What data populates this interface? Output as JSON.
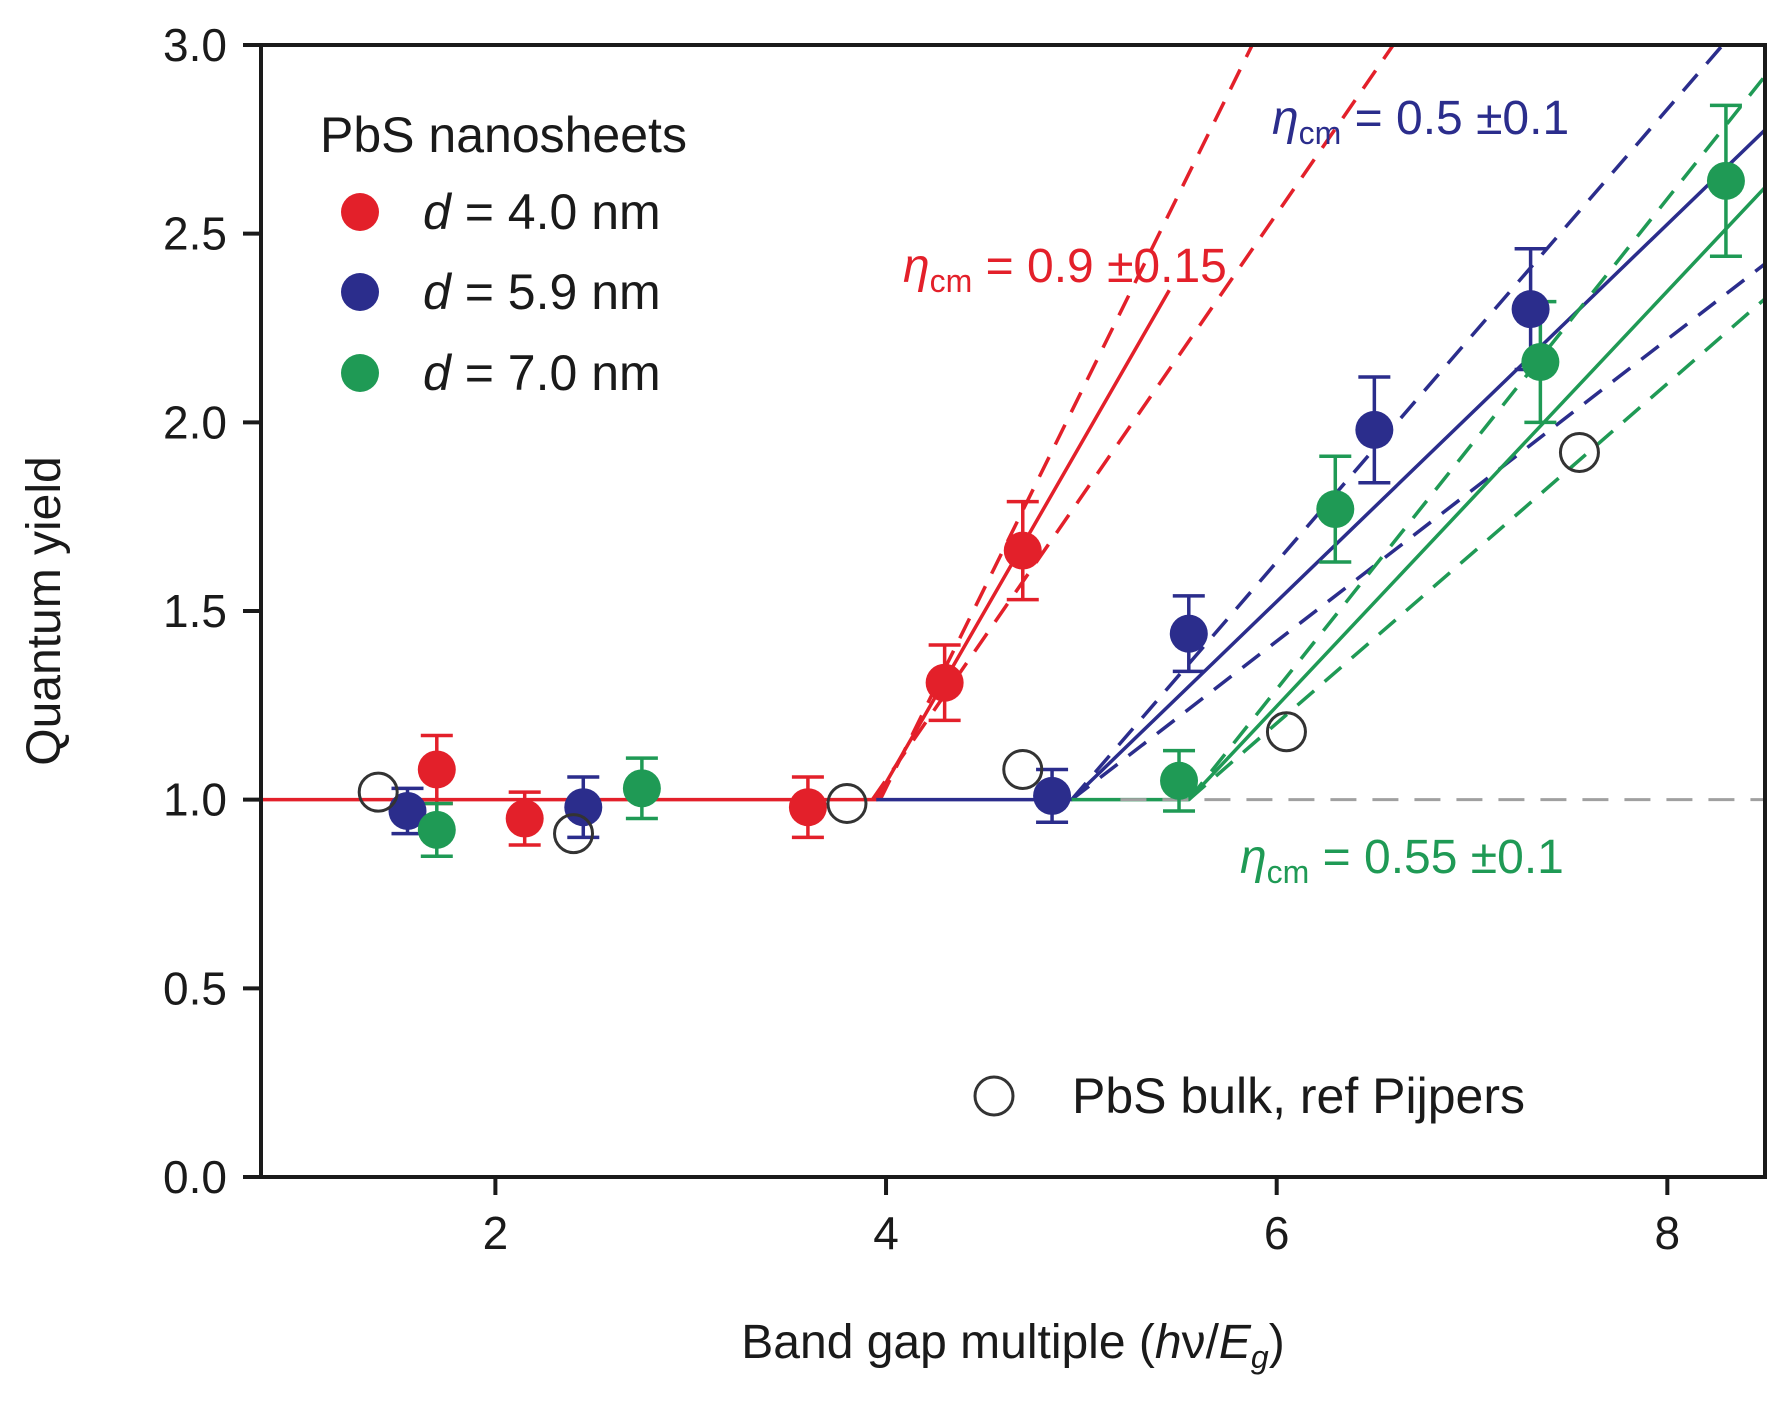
{
  "chart_data": {
    "type": "scatter",
    "title": "",
    "xlabel": "Band gap multiple (hν/Eg)",
    "xlabel_parts": {
      "prefix": "Band gap multiple (",
      "h": "h",
      "nu": "ν",
      "slash": "/",
      "E": "E",
      "g": "g",
      "suffix": ")"
    },
    "ylabel": "Quantum yield",
    "xlim": [
      0.8,
      8.5
    ],
    "ylim": [
      0.0,
      3.0
    ],
    "xticks": [
      2,
      4,
      6,
      8
    ],
    "yticks": [
      0.0,
      0.5,
      1.0,
      1.5,
      2.0,
      2.5,
      3.0
    ],
    "xtick_labels": [
      "2",
      "4",
      "6",
      "8"
    ],
    "ytick_labels": [
      "0.0",
      "0.5",
      "1.0",
      "1.5",
      "2.0",
      "2.5",
      "3.0"
    ],
    "legend": {
      "title": "PbS nanosheets",
      "placement": "top-left",
      "entries": [
        {
          "prefix": "d",
          "text": " = 4.0 nm",
          "color": "#e3202a"
        },
        {
          "prefix": "d",
          "text": " = 5.9 nm",
          "color": "#2b2d8c"
        },
        {
          "prefix": "d",
          "text": " = 7.0 nm",
          "color": "#1f9a55"
        }
      ]
    },
    "reference_legend": {
      "text": "PbS bulk, ref Pijpers",
      "placement": "bottom-right"
    },
    "reference_line": {
      "y": 1.0,
      "style": "dashed",
      "color": "#a0a0a0"
    },
    "series": [
      {
        "name": "d = 4.0 nm",
        "color": "#e3202a",
        "x": [
          1.7,
          2.15,
          3.6,
          4.3,
          4.7
        ],
        "y": [
          1.08,
          0.95,
          0.98,
          1.31,
          1.66
        ],
        "yerr": [
          0.09,
          0.07,
          0.08,
          0.1,
          0.13
        ],
        "fit": {
          "threshold": 3.95,
          "slope": 0.9,
          "y_end": 2.35
        },
        "fit_bounds": [
          {
            "threshold": 3.97,
            "slope": 1.05
          },
          {
            "threshold": 3.93,
            "slope": 0.75
          }
        ]
      },
      {
        "name": "d = 5.9 nm",
        "color": "#2b2d8c",
        "x": [
          1.55,
          2.45,
          4.85,
          5.55,
          6.5,
          7.3
        ],
        "y": [
          0.97,
          0.98,
          1.01,
          1.44,
          1.98,
          2.3
        ],
        "yerr": [
          0.06,
          0.08,
          0.07,
          0.1,
          0.14,
          0.16
        ],
        "fit": {
          "threshold": 4.95,
          "slope": 0.5,
          "y_end": 2.92
        },
        "fit_bounds": [
          {
            "threshold": 4.95,
            "slope": 0.6
          },
          {
            "threshold": 4.95,
            "slope": 0.4
          }
        ]
      },
      {
        "name": "d = 7.0 nm",
        "color": "#1f9a55",
        "x": [
          1.7,
          2.75,
          5.5,
          6.3,
          7.35,
          8.3
        ],
        "y": [
          0.92,
          1.03,
          1.05,
          1.77,
          2.16,
          2.64
        ],
        "yerr": [
          0.07,
          0.08,
          0.08,
          0.14,
          0.16,
          0.2
        ],
        "fit": {
          "threshold": 5.55,
          "slope": 0.55,
          "y_end": 2.78
        },
        "fit_bounds": [
          {
            "threshold": 5.55,
            "slope": 0.65
          },
          {
            "threshold": 5.55,
            "slope": 0.45
          }
        ]
      },
      {
        "name": "PbS bulk, ref Pijpers",
        "color": "#333333",
        "marker": "open-circle",
        "x": [
          1.4,
          2.4,
          3.8,
          4.7,
          6.05,
          7.55
        ],
        "y": [
          1.02,
          0.91,
          0.99,
          1.08,
          1.18,
          1.92
        ]
      }
    ],
    "annotations": [
      {
        "symbol": "η",
        "sub": "cm",
        "text": " = 0.9 ±0.15",
        "color": "#e3202a"
      },
      {
        "symbol": "η",
        "sub": "cm",
        "text": " = 0.5 ±0.1",
        "color": "#2b2d8c"
      },
      {
        "symbol": "η",
        "sub": "cm",
        "text": " = 0.55 ±0.1",
        "color": "#1f9a55"
      }
    ]
  }
}
